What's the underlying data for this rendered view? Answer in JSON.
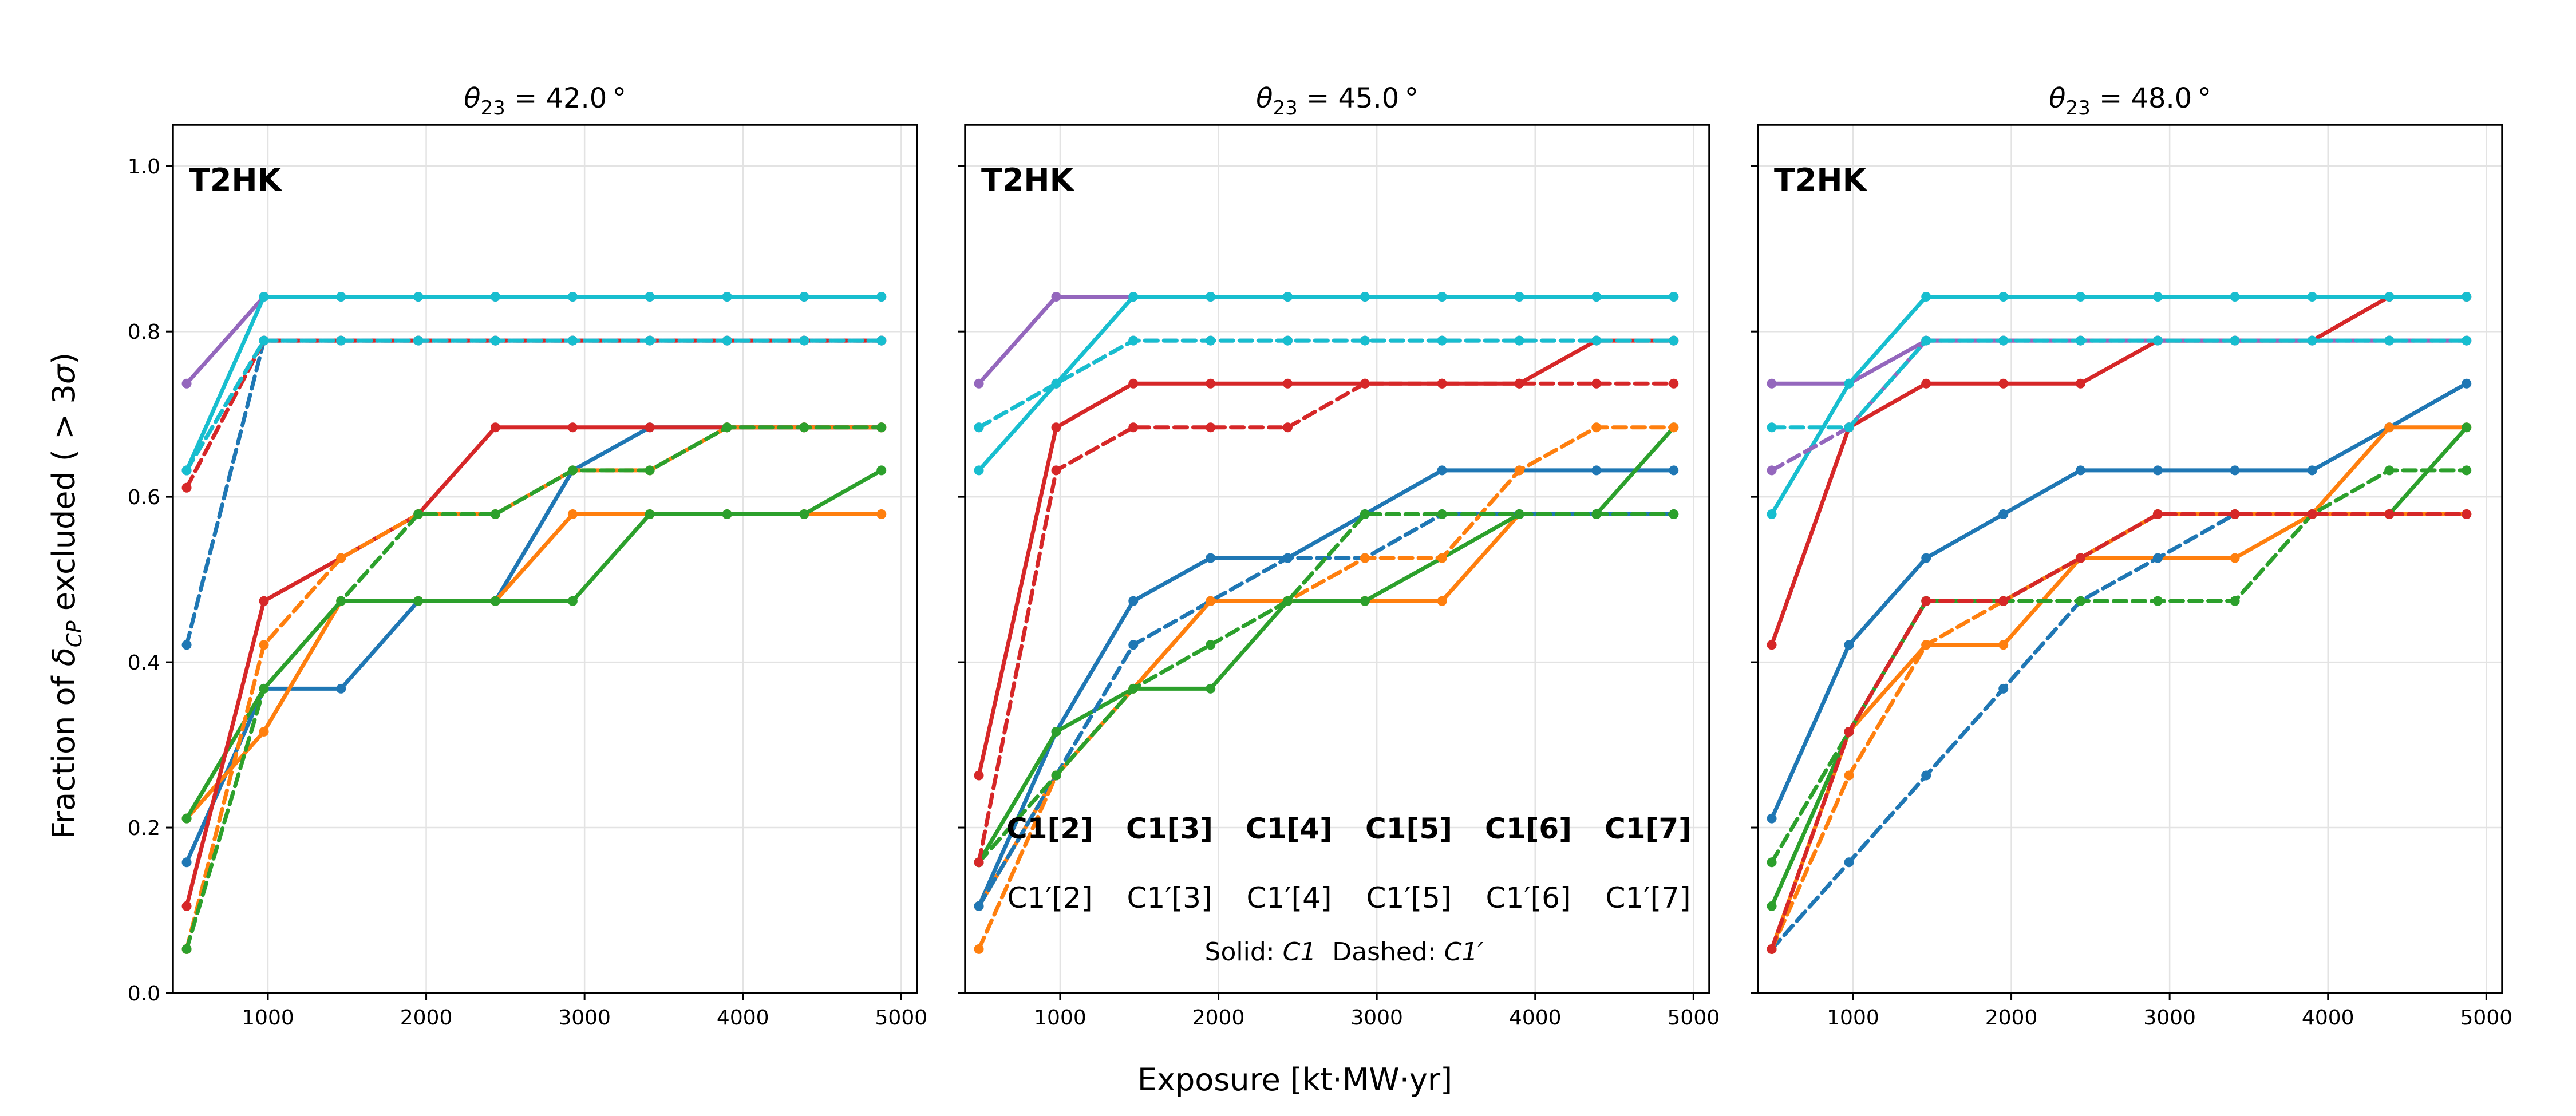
{
  "chart_data": {
    "type": "line",
    "xlabel": "Exposure [kt·MW·yr]",
    "ylabel": "Fraction of δCP excluded (> 3σ)",
    "ylabel_parts": {
      "a": "Fraction of ",
      "sym": "δ",
      "sub": "CP",
      "b": " excluded ( > 3",
      "sig": "σ",
      "c": ")"
    },
    "xlim": [
      400,
      5100
    ],
    "ylim": [
      0,
      1.05
    ],
    "xticks": [
      1000,
      2000,
      3000,
      4000,
      5000
    ],
    "yticks": [
      "0.0",
      "0.2",
      "0.4",
      "0.6",
      "0.8",
      "1.0"
    ],
    "x": [
      487,
      975,
      1462,
      1950,
      2437,
      2925,
      3412,
      3900,
      4387,
      4875
    ],
    "colors": {
      "C1[2]": "#1f77b4",
      "C1[3]": "#ff7f0e",
      "C1[4]": "#2ca02c",
      "C1[5]": "#d62728",
      "C1[6]": "#9467bd",
      "C1[7]": "#17becf"
    },
    "legend": {
      "solid": [
        "C1[2]",
        "C1[3]",
        "C1[4]",
        "C1[5]",
        "C1[6]",
        "C1[7]"
      ],
      "dashed": [
        "C1′[2]",
        "C1′[3]",
        "C1′[4]",
        "C1′[5]",
        "C1′[6]",
        "C1′[7]"
      ],
      "note_solid": "Solid: ",
      "note_solid_sym": "C1",
      "note_dashed": "Dashed: ",
      "note_dashed_sym": "C1′",
      "placement": "lower-center of middle panel"
    },
    "panels": [
      {
        "theta": "42.0",
        "tag": "T2HK",
        "series": [
          {
            "name": "C1[2]",
            "style": "solid",
            "values": [
              0.158,
              0.368,
              0.368,
              0.474,
              0.474,
              0.632,
              0.684,
              0.684,
              0.684,
              0.684
            ]
          },
          {
            "name": "C1[3]",
            "style": "solid",
            "values": [
              0.211,
              0.316,
              0.474,
              0.474,
              0.474,
              0.579,
              0.579,
              0.579,
              0.579,
              0.579
            ]
          },
          {
            "name": "C1[4]",
            "style": "solid",
            "values": [
              0.211,
              0.368,
              0.474,
              0.474,
              0.474,
              0.474,
              0.579,
              0.579,
              0.579,
              0.632
            ]
          },
          {
            "name": "C1[5]",
            "style": "solid",
            "values": [
              0.105,
              0.474,
              0.526,
              0.579,
              0.684,
              0.684,
              0.684,
              0.684,
              0.684,
              0.684
            ]
          },
          {
            "name": "C1[6]",
            "style": "solid",
            "values": [
              0.737,
              0.842,
              0.842,
              0.842,
              0.842,
              0.842,
              0.842,
              0.842,
              0.842,
              0.842
            ]
          },
          {
            "name": "C1[7]",
            "style": "solid",
            "values": [
              0.632,
              0.842,
              0.842,
              0.842,
              0.842,
              0.842,
              0.842,
              0.842,
              0.842,
              0.842
            ]
          },
          {
            "name": "C1′[2]",
            "style": "dashed",
            "values": [
              0.421,
              0.789,
              0.789,
              0.789,
              0.789,
              0.789,
              0.789,
              0.789,
              0.789,
              0.789
            ]
          },
          {
            "name": "C1′[3]",
            "style": "dashed",
            "values": [
              0.053,
              0.421,
              0.526,
              0.579,
              0.579,
              0.632,
              0.632,
              0.684,
              0.684,
              0.684
            ]
          },
          {
            "name": "C1′[4]",
            "style": "dashed",
            "values": [
              0.053,
              0.368,
              0.474,
              0.579,
              0.579,
              0.632,
              0.632,
              0.684,
              0.684,
              0.684
            ]
          },
          {
            "name": "C1′[5]",
            "style": "dashed",
            "values": [
              0.611,
              0.789,
              0.789,
              0.789,
              0.789,
              0.789,
              0.789,
              0.789,
              0.789,
              0.789
            ]
          },
          {
            "name": "C1′[6]",
            "style": "dashed",
            "values": [
              0.632,
              0.789,
              0.789,
              0.789,
              0.789,
              0.789,
              0.789,
              0.789,
              0.789,
              0.789
            ]
          },
          {
            "name": "C1′[7]",
            "style": "dashed",
            "values": [
              0.632,
              0.789,
              0.789,
              0.789,
              0.789,
              0.789,
              0.789,
              0.789,
              0.789,
              0.789
            ]
          }
        ]
      },
      {
        "theta": "45.0",
        "tag": "T2HK",
        "series": [
          {
            "name": "C1[2]",
            "style": "solid",
            "values": [
              0.105,
              0.316,
              0.474,
              0.526,
              0.526,
              0.579,
              0.632,
              0.632,
              0.632,
              0.632
            ]
          },
          {
            "name": "C1[3]",
            "style": "solid",
            "values": [
              0.105,
              0.263,
              0.368,
              0.474,
              0.474,
              0.474,
              0.474,
              0.579,
              0.579,
              0.579
            ]
          },
          {
            "name": "C1[4]",
            "style": "solid",
            "values": [
              0.158,
              0.316,
              0.368,
              0.368,
              0.474,
              0.474,
              0.526,
              0.579,
              0.579,
              0.684
            ]
          },
          {
            "name": "C1[5]",
            "style": "solid",
            "values": [
              0.263,
              0.684,
              0.737,
              0.737,
              0.737,
              0.737,
              0.737,
              0.737,
              0.789,
              0.789
            ]
          },
          {
            "name": "C1[6]",
            "style": "solid",
            "values": [
              0.737,
              0.842,
              0.842,
              0.842,
              0.842,
              0.842,
              0.842,
              0.842,
              0.842,
              0.842
            ]
          },
          {
            "name": "C1[7]",
            "style": "solid",
            "values": [
              0.632,
              0.737,
              0.842,
              0.842,
              0.842,
              0.842,
              0.842,
              0.842,
              0.842,
              0.842
            ]
          },
          {
            "name": "C1′[2]",
            "style": "dashed",
            "values": [
              0.105,
              0.263,
              0.421,
              0.474,
              0.526,
              0.526,
              0.579,
              0.579,
              0.579,
              0.579
            ]
          },
          {
            "name": "C1′[3]",
            "style": "dashed",
            "values": [
              0.053,
              0.263,
              0.368,
              0.474,
              0.474,
              0.526,
              0.526,
              0.632,
              0.684,
              0.684
            ]
          },
          {
            "name": "C1′[4]",
            "style": "dashed",
            "values": [
              0.158,
              0.263,
              0.368,
              0.421,
              0.474,
              0.579,
              0.579,
              0.579,
              0.579,
              0.579
            ]
          },
          {
            "name": "C1′[5]",
            "style": "dashed",
            "values": [
              0.158,
              0.632,
              0.684,
              0.684,
              0.684,
              0.737,
              0.737,
              0.737,
              0.737,
              0.737
            ]
          },
          {
            "name": "C1′[6]",
            "style": "dashed",
            "values": [
              0.684,
              0.737,
              0.789,
              0.789,
              0.789,
              0.789,
              0.789,
              0.789,
              0.789,
              0.789
            ]
          },
          {
            "name": "C1′[7]",
            "style": "dashed",
            "values": [
              0.684,
              0.737,
              0.789,
              0.789,
              0.789,
              0.789,
              0.789,
              0.789,
              0.789,
              0.789
            ]
          }
        ]
      },
      {
        "theta": "48.0",
        "tag": "T2HK",
        "series": [
          {
            "name": "C1[2]",
            "style": "solid",
            "values": [
              0.211,
              0.421,
              0.526,
              0.579,
              0.632,
              0.632,
              0.632,
              0.632,
              0.684,
              0.737
            ]
          },
          {
            "name": "C1[3]",
            "style": "solid",
            "values": [
              0.053,
              0.316,
              0.421,
              0.421,
              0.526,
              0.526,
              0.526,
              0.579,
              0.684,
              0.684
            ]
          },
          {
            "name": "C1[4]",
            "style": "solid",
            "values": [
              0.105,
              0.316,
              0.474,
              0.474,
              0.526,
              0.579,
              0.579,
              0.579,
              0.579,
              0.684
            ]
          },
          {
            "name": "C1[5]",
            "style": "solid",
            "values": [
              0.421,
              0.684,
              0.737,
              0.737,
              0.737,
              0.789,
              0.789,
              0.789,
              0.842,
              0.842
            ]
          },
          {
            "name": "C1[6]",
            "style": "solid",
            "values": [
              0.737,
              0.737,
              0.789,
              0.789,
              0.789,
              0.789,
              0.789,
              0.789,
              0.789,
              0.789
            ]
          },
          {
            "name": "C1[7]",
            "style": "solid",
            "values": [
              0.579,
              0.737,
              0.842,
              0.842,
              0.842,
              0.842,
              0.842,
              0.842,
              0.842,
              0.842
            ]
          },
          {
            "name": "C1′[2]",
            "style": "dashed",
            "values": [
              0.053,
              0.158,
              0.263,
              0.368,
              0.474,
              0.526,
              0.579,
              0.579,
              0.579,
              0.579
            ]
          },
          {
            "name": "C1′[3]",
            "style": "dashed",
            "values": [
              0.053,
              0.263,
              0.421,
              0.474,
              0.526,
              0.579,
              0.579,
              0.579,
              0.579,
              0.579
            ]
          },
          {
            "name": "C1′[4]",
            "style": "dashed",
            "values": [
              0.158,
              0.316,
              0.474,
              0.474,
              0.474,
              0.474,
              0.474,
              0.579,
              0.632,
              0.632
            ]
          },
          {
            "name": "C1′[5]",
            "style": "dashed",
            "values": [
              0.053,
              0.316,
              0.474,
              0.474,
              0.526,
              0.579,
              0.579,
              0.579,
              0.579,
              0.579
            ]
          },
          {
            "name": "C1′[6]",
            "style": "dashed",
            "values": [
              0.632,
              0.684,
              0.789,
              0.789,
              0.789,
              0.789,
              0.789,
              0.789,
              0.789,
              0.789
            ]
          },
          {
            "name": "C1′[7]",
            "style": "dashed",
            "values": [
              0.684,
              0.684,
              0.789,
              0.789,
              0.789,
              0.789,
              0.789,
              0.789,
              0.789,
              0.789
            ]
          }
        ]
      }
    ]
  }
}
